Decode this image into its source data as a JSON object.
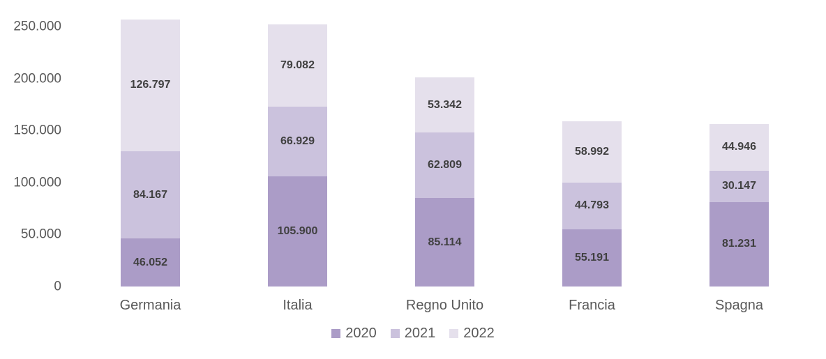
{
  "chart_data": {
    "type": "bar",
    "stacked": true,
    "title": "",
    "xlabel": "",
    "ylabel": "",
    "categories": [
      "Germania",
      "Italia",
      "Regno Unito",
      "Francia",
      "Spagna"
    ],
    "series": [
      {
        "name": "2020",
        "color": "#ab9cc7",
        "values": [
          46052,
          105900,
          85114,
          55191,
          81231
        ],
        "labels": [
          "46.052",
          "105.900",
          "85.114",
          "55.191",
          "81.231"
        ]
      },
      {
        "name": "2021",
        "color": "#cbc2dd",
        "values": [
          84167,
          66929,
          62809,
          44793,
          30147
        ],
        "labels": [
          "84.167",
          "66.929",
          "62.809",
          "44.793",
          "30.147"
        ]
      },
      {
        "name": "2022",
        "color": "#e5e0ec",
        "values": [
          126797,
          79082,
          53342,
          58992,
          44946
        ],
        "labels": [
          "126.797",
          "79.082",
          "53.342",
          "58.992",
          "44.946"
        ]
      }
    ],
    "y_ticks": [
      "250.000",
      "200.000",
      "150.000",
      "100.000",
      "50.000",
      "0"
    ],
    "ylim": [
      0,
      250000
    ],
    "grid": false,
    "legend_position": "bottom",
    "colors": {
      "axis_text": "#595959",
      "data_label_text": "#404040",
      "background": "#ffffff"
    }
  }
}
